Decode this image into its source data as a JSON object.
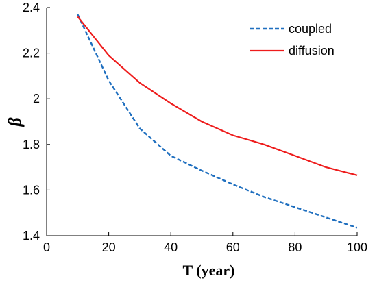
{
  "chart_data": {
    "type": "line",
    "xlabel": "T (year)",
    "ylabel": "β",
    "xlim": [
      0,
      100
    ],
    "ylim": [
      1.4,
      2.4
    ],
    "xticks": [
      0,
      20,
      40,
      60,
      80,
      100
    ],
    "yticks": [
      1.4,
      1.6,
      1.8,
      2.0,
      2.2,
      2.4
    ],
    "xtick_labels": [
      "0",
      "20",
      "40",
      "60",
      "80",
      "100"
    ],
    "ytick_labels": [
      "1.4",
      "1.6",
      "1.8",
      "2",
      "2.2",
      "2.4"
    ],
    "legend_position": "top-right",
    "grid": false,
    "series": [
      {
        "name": "coupled",
        "color": "#1f6fbf",
        "style": "dashed",
        "x": [
          10,
          20,
          30,
          40,
          50,
          60,
          70,
          80,
          90,
          100
        ],
        "values": [
          2.37,
          2.08,
          1.87,
          1.75,
          1.685,
          1.625,
          1.57,
          1.525,
          1.48,
          1.435
        ]
      },
      {
        "name": "diffusion",
        "color": "#ee1c1c",
        "style": "solid",
        "x": [
          10,
          20,
          30,
          40,
          50,
          60,
          70,
          80,
          90,
          100
        ],
        "values": [
          2.36,
          2.19,
          2.07,
          1.98,
          1.9,
          1.84,
          1.8,
          1.75,
          1.7,
          1.665
        ]
      }
    ]
  }
}
